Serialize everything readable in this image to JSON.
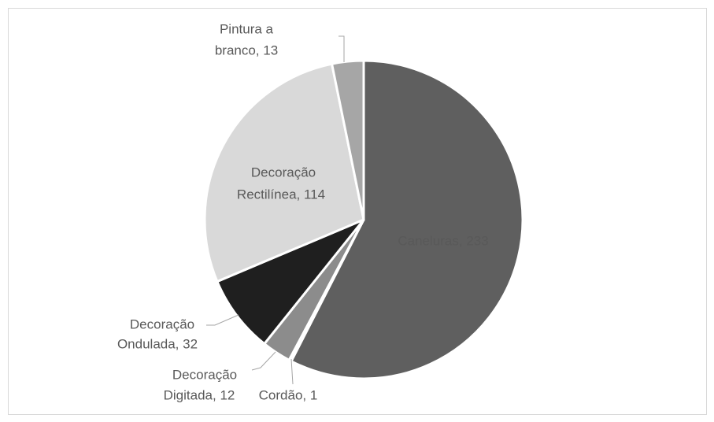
{
  "chart_data": {
    "type": "pie",
    "values": [
      233,
      1,
      12,
      32,
      114,
      13
    ],
    "value_labels": [
      [
        "Caneluras, 233"
      ],
      [
        "Cordão, 1"
      ],
      [
        "Decoração",
        "Digitada, 12"
      ],
      [
        "Decoração",
        "Ondulada, 32"
      ],
      [
        "Decoração",
        "Rectilínea, 114"
      ],
      [
        "Pintura a",
        "branco, 13"
      ]
    ],
    "colors": [
      "#5f5f5f",
      "#c9c9c9",
      "#8c8c8c",
      "#1f1f1f",
      "#d9d9d9",
      "#a6a6a6"
    ]
  }
}
